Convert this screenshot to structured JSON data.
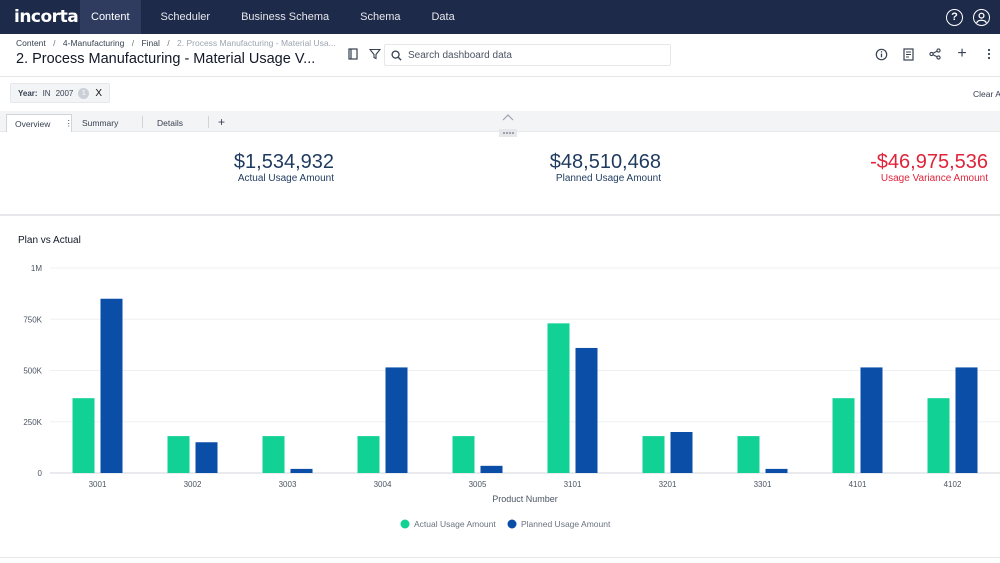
{
  "app": {
    "logo": "incorta"
  },
  "nav": {
    "tabs": [
      {
        "label": "Content",
        "active": true
      },
      {
        "label": "Scheduler",
        "active": false
      },
      {
        "label": "Business Schema",
        "active": false
      },
      {
        "label": "Schema",
        "active": false
      },
      {
        "label": "Data",
        "active": false
      }
    ],
    "help_glyph": "?",
    "icons": [
      "help-icon",
      "user-icon"
    ]
  },
  "breadcrumb": {
    "items": [
      "Content",
      "4-Manufacturing",
      "Final"
    ],
    "current": "2. Process Manufacturing - Material Usa...",
    "separator": "/"
  },
  "page": {
    "title": "2. Process Manufacturing - Material Usage V..."
  },
  "toolbar": {
    "icons": [
      "bookmark-icon",
      "filter-icon"
    ],
    "search_placeholder": "Search dashboard data",
    "right_icons": [
      "info-icon",
      "report-icon",
      "share-icon",
      "add-icon",
      "more-icon"
    ],
    "add_glyph": "+"
  },
  "filter": {
    "field": "Year:",
    "operator": "IN",
    "value": "2007",
    "count": "1",
    "remove": "X"
  },
  "clear_all": "Clear Al",
  "tabs": {
    "items": [
      "Overview",
      "Summary",
      "Details"
    ],
    "active": "Overview",
    "menu_glyph": "⋮",
    "add_glyph": "+"
  },
  "kpis": [
    {
      "value": "$1,534,932",
      "label": "Actual Usage Amount",
      "negative": false
    },
    {
      "value": "$48,510,468",
      "label": "Planned Usage Amount",
      "negative": false
    },
    {
      "value": "-$46,975,536",
      "label": "Usage Variance Amount",
      "negative": true
    }
  ],
  "colors": {
    "nav_bg": "#1e2a4a",
    "actual": "#12d194",
    "planned": "#0a4ea8",
    "negative": "#e0233a",
    "kpi_text": "#1f3a5f"
  },
  "chart_data": {
    "type": "bar",
    "title": "Plan vs Actual",
    "xlabel": "Product Number",
    "ylabel": "",
    "categories": [
      "3001",
      "3002",
      "3003",
      "3004",
      "3005",
      "3101",
      "3201",
      "3301",
      "4101",
      "4102"
    ],
    "series": [
      {
        "name": "Actual Usage Amount",
        "color": "#12d194",
        "values": [
          365000,
          180000,
          180000,
          180000,
          180000,
          730000,
          180000,
          180000,
          365000,
          365000
        ]
      },
      {
        "name": "Planned Usage Amount",
        "color": "#0a4ea8",
        "values": [
          850000,
          150000,
          20000,
          515000,
          35000,
          610000,
          200000,
          20000,
          515000,
          515000
        ]
      }
    ],
    "ylim": [
      0,
      1000000
    ],
    "yticks": [
      {
        "value": 0,
        "label": "0"
      },
      {
        "value": 250000,
        "label": "250K"
      },
      {
        "value": 500000,
        "label": "500K"
      },
      {
        "value": 750000,
        "label": "750K"
      },
      {
        "value": 1000000,
        "label": "1M"
      }
    ],
    "grid": true,
    "legend": "bottom-center"
  }
}
